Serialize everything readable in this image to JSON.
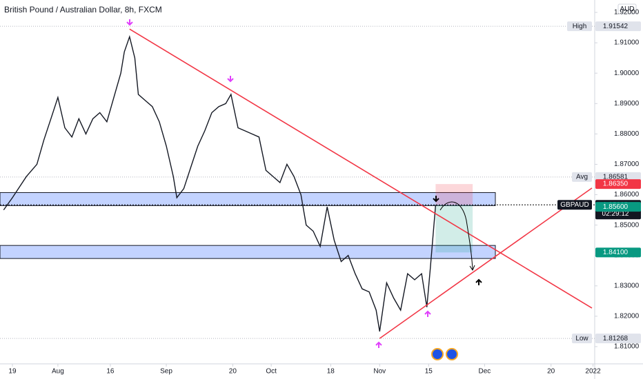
{
  "chart_data": {
    "type": "line",
    "title": "British Pound / Australian Dollar, 8h, FXCM",
    "currency": "AUD",
    "x": [
      -2.5,
      0,
      4,
      7,
      9,
      11,
      13,
      15,
      17,
      19,
      21,
      23,
      25,
      27,
      29,
      31,
      32,
      33.5,
      35,
      36,
      38,
      40,
      42,
      44,
      46,
      47,
      49,
      51,
      53,
      55,
      57,
      59,
      61,
      62.5,
      64.5,
      66.5,
      68.5,
      70.5,
      72.5,
      74.5,
      76.5,
      78.5,
      80.5,
      82.5,
      84,
      86,
      88,
      90,
      92,
      94,
      96,
      98,
      100,
      102,
      104,
      105,
      107,
      109,
      111,
      113,
      115,
      117,
      118.5,
      119.5,
      121
    ],
    "series": [
      {
        "name": "GBPAUD",
        "color": "#131722",
        "values": [
          1.855,
          1.859,
          1.866,
          1.87,
          1.878,
          1.885,
          1.892,
          1.882,
          1.879,
          1.885,
          1.88,
          1.885,
          1.887,
          1.884,
          1.892,
          1.9,
          1.907,
          1.912,
          1.905,
          1.893,
          1.891,
          1.889,
          1.884,
          1.876,
          1.866,
          1.859,
          1.862,
          1.869,
          1.876,
          1.881,
          1.887,
          1.889,
          1.89,
          1.893,
          1.882,
          1.881,
          1.88,
          1.879,
          1.868,
          1.866,
          1.864,
          1.87,
          1.866,
          1.86,
          1.85,
          1.848,
          1.843,
          1.856,
          1.845,
          1.838,
          1.84,
          1.834,
          1.829,
          1.828,
          1.822,
          1.815,
          1.831,
          1.826,
          1.822,
          1.834,
          1.832,
          1.834,
          1.823,
          1.836,
          1.85665
        ]
      }
    ],
    "xlim": [
      -3.55,
      165.7
    ],
    "ylim": [
      1.80433,
      1.92408
    ],
    "xticks": [
      {
        "value": 0,
        "label": "19"
      },
      {
        "value": 13,
        "label": "Aug"
      },
      {
        "value": 28,
        "label": "16"
      },
      {
        "value": 44,
        "label": "Sep"
      },
      {
        "value": 63,
        "label": "20"
      },
      {
        "value": 74,
        "label": "Oct"
      },
      {
        "value": 91,
        "label": "18"
      },
      {
        "value": 105,
        "label": "Nov"
      },
      {
        "value": 119,
        "label": "15"
      },
      {
        "value": 135,
        "label": "Dec"
      },
      {
        "value": 154,
        "label": "20"
      },
      {
        "value": 166,
        "label": "2022"
      }
    ],
    "yticks": [
      {
        "value": 1.81,
        "label": "1.81000"
      },
      {
        "value": 1.82,
        "label": "1.82000"
      },
      {
        "value": 1.83,
        "label": "1.83000"
      },
      {
        "value": 1.84,
        "label": "1.84000"
      },
      {
        "value": 1.85,
        "label": "1.85000"
      },
      {
        "value": 1.86,
        "label": "1.86000"
      },
      {
        "value": 1.87,
        "label": "1.87000"
      },
      {
        "value": 1.88,
        "label": "1.88000"
      },
      {
        "value": 1.89,
        "label": "1.89000"
      },
      {
        "value": 1.9,
        "label": "1.90000"
      },
      {
        "value": 1.91,
        "label": "1.91000"
      },
      {
        "value": 1.92,
        "label": "1.92000"
      }
    ],
    "grid": false,
    "price_markers": [
      {
        "name": "High",
        "price": 1.91542,
        "color": "#e0e3eb"
      },
      {
        "name": "Avg",
        "price": 1.86581,
        "color": "#e0e3eb"
      },
      {
        "name": "Low",
        "price": 1.81268,
        "color": "#e0e3eb"
      },
      {
        "price": {
          "value": 1.8635,
          "label": "1.86350"
        },
        "color": "#f23645"
      },
      {
        "name": "GBPAUD",
        "price": 1.85665,
        "countdown": "02:29:12",
        "color": "#131722"
      },
      {
        "price": {
          "value": 1.856,
          "label": "1.85600"
        },
        "color": "#089981"
      },
      {
        "price": {
          "value": 1.841,
          "label": "1.84100"
        },
        "color": "#089981"
      }
    ],
    "zones": [
      {
        "top": 1.8607,
        "bottom": 1.8564
      },
      {
        "top": 1.8433,
        "bottom": 1.839
      }
    ],
    "trendlines": [
      {
        "x": [
          33.5,
          165.7
        ],
        "y": [
          1.9145,
          1.8227
        ],
        "color": "#f23645"
      },
      {
        "x": [
          105,
          165.7
        ],
        "y": [
          1.8127,
          1.8622
        ],
        "color": "#f23645"
      }
    ],
    "position": {
      "x": [
        121,
        131.6
      ],
      "entry": 1.8566,
      "stop": 1.8635,
      "target": 1.841
    }
  }
}
